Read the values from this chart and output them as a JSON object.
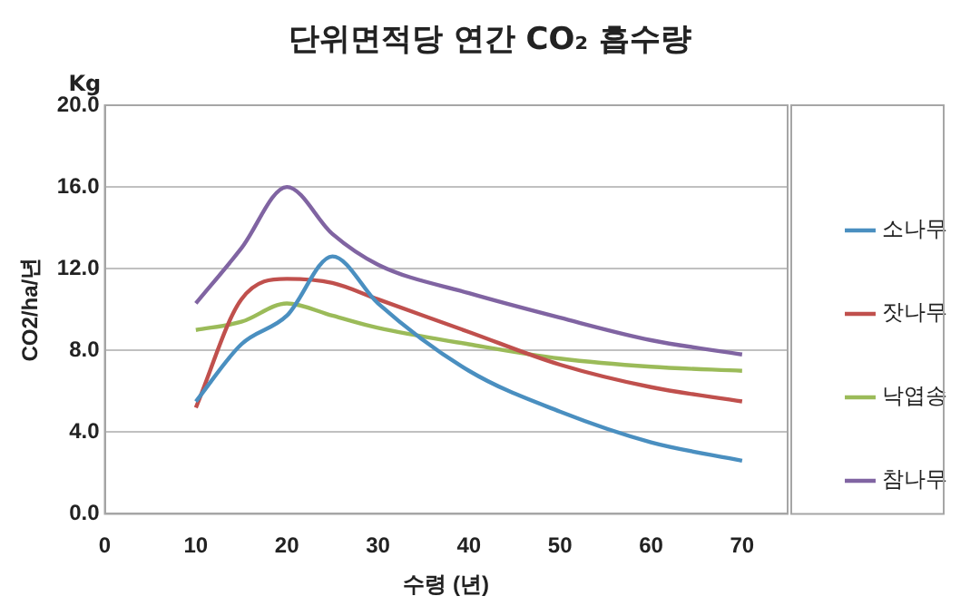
{
  "chart_data": {
    "type": "line",
    "title": "단위면적당 연간 CO₂ 흡수량",
    "xlabel": "수령 (년)",
    "ylabel": "CO2/ha/년",
    "annotations": [
      "Kg"
    ],
    "x": [
      10,
      15,
      20,
      25,
      30,
      40,
      50,
      60,
      70
    ],
    "series": [
      {
        "name": "소나무",
        "color": "#4a8fc0",
        "values": [
          5.5,
          8.3,
          9.7,
          12.6,
          10.3,
          7.0,
          5.0,
          3.5,
          2.6
        ]
      },
      {
        "name": "잣나무",
        "color": "#c0504d",
        "values": [
          5.2,
          10.5,
          11.5,
          11.3,
          10.5,
          8.9,
          7.3,
          6.2,
          5.5
        ]
      },
      {
        "name": "낙엽송",
        "color": "#9bbb59",
        "values": [
          9.0,
          9.4,
          10.3,
          9.7,
          9.1,
          8.3,
          7.6,
          7.2,
          7.0
        ]
      },
      {
        "name": "참나무",
        "color": "#8064a2",
        "values": [
          10.3,
          13.0,
          16.0,
          13.7,
          12.2,
          10.8,
          9.6,
          8.5,
          7.8
        ]
      }
    ],
    "xlim": [
      0,
      75
    ],
    "xticks": [
      0,
      10,
      20,
      30,
      40,
      50,
      60,
      70
    ],
    "ylim": [
      0,
      20
    ],
    "yticks": [
      {
        "value": 0,
        "label": "0.0"
      },
      {
        "value": 4,
        "label": "4.0"
      },
      {
        "value": 8,
        "label": "8.0"
      },
      {
        "value": 12,
        "label": "12.0"
      },
      {
        "value": 16,
        "label": "16.0"
      },
      {
        "value": 20,
        "label": "20.0"
      }
    ],
    "grid": "y",
    "legend": "right",
    "marker": "none",
    "line_style": "solid"
  }
}
